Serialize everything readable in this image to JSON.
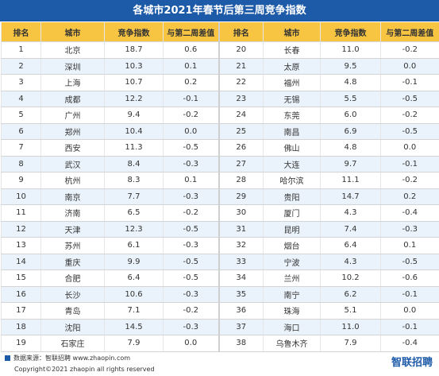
{
  "title": "各城市2021年春节后第三周竞争指数",
  "headers": [
    "排名",
    "城市",
    "竞争指数",
    "与第二周差值",
    "排名",
    "城市",
    "竞争指数",
    "与第二周差值"
  ],
  "rows": [
    {
      "l": [
        "1",
        "北京",
        "18.7",
        "0.6"
      ],
      "r": [
        "20",
        "长春",
        "11.0",
        "-0.2"
      ]
    },
    {
      "l": [
        "2",
        "深圳",
        "10.3",
        "0.1"
      ],
      "r": [
        "21",
        "太原",
        "9.5",
        "0.0"
      ]
    },
    {
      "l": [
        "3",
        "上海",
        "10.7",
        "0.2"
      ],
      "r": [
        "22",
        "福州",
        "4.8",
        "-0.1"
      ]
    },
    {
      "l": [
        "4",
        "成都",
        "12.2",
        "-0.1"
      ],
      "r": [
        "23",
        "无锡",
        "5.5",
        "-0.5"
      ]
    },
    {
      "l": [
        "5",
        "广州",
        "9.4",
        "-0.2"
      ],
      "r": [
        "24",
        "东莞",
        "6.0",
        "-0.2"
      ]
    },
    {
      "l": [
        "6",
        "郑州",
        "10.4",
        "0.0"
      ],
      "r": [
        "25",
        "南昌",
        "6.9",
        "-0.5"
      ]
    },
    {
      "l": [
        "7",
        "西安",
        "11.3",
        "-0.5"
      ],
      "r": [
        "26",
        "佛山",
        "4.8",
        "0.0"
      ]
    },
    {
      "l": [
        "8",
        "武汉",
        "8.4",
        "-0.3"
      ],
      "r": [
        "27",
        "大连",
        "9.7",
        "-0.1"
      ]
    },
    {
      "l": [
        "9",
        "杭州",
        "8.3",
        "0.1"
      ],
      "r": [
        "28",
        "哈尔滨",
        "11.1",
        "-0.2"
      ]
    },
    {
      "l": [
        "10",
        "南京",
        "7.7",
        "-0.3"
      ],
      "r": [
        "29",
        "贵阳",
        "14.7",
        "0.2"
      ]
    },
    {
      "l": [
        "11",
        "济南",
        "6.5",
        "-0.2"
      ],
      "r": [
        "30",
        "厦门",
        "4.3",
        "-0.4"
      ]
    },
    {
      "l": [
        "12",
        "天津",
        "12.3",
        "-0.5"
      ],
      "r": [
        "31",
        "昆明",
        "7.4",
        "-0.3"
      ]
    },
    {
      "l": [
        "13",
        "苏州",
        "6.1",
        "-0.3"
      ],
      "r": [
        "32",
        "烟台",
        "6.4",
        "0.1"
      ]
    },
    {
      "l": [
        "14",
        "重庆",
        "9.9",
        "-0.5"
      ],
      "r": [
        "33",
        "宁波",
        "4.3",
        "-0.5"
      ]
    },
    {
      "l": [
        "15",
        "合肥",
        "6.4",
        "-0.5"
      ],
      "r": [
        "34",
        "兰州",
        "10.2",
        "-0.6"
      ]
    },
    {
      "l": [
        "16",
        "长沙",
        "10.6",
        "-0.3"
      ],
      "r": [
        "35",
        "南宁",
        "6.2",
        "-0.1"
      ]
    },
    {
      "l": [
        "17",
        "青岛",
        "7.1",
        "-0.2"
      ],
      "r": [
        "36",
        "珠海",
        "5.1",
        "0.0"
      ]
    },
    {
      "l": [
        "18",
        "沈阳",
        "14.5",
        "-0.3"
      ],
      "r": [
        "37",
        "海口",
        "11.0",
        "-0.1"
      ]
    },
    {
      "l": [
        "19",
        "石家庄",
        "7.9",
        "0.0"
      ],
      "r": [
        "38",
        "乌鲁木齐",
        "7.9",
        "-0.4"
      ]
    }
  ],
  "footer": {
    "source": "数据来源：智联招聘   www.zhaopin.com",
    "copyright": "Copyright©2021 zhaopin all rights reserved",
    "brand": "智联招聘"
  },
  "colors": {
    "title_bg": "#1d5aa8",
    "header_bg": "#f7c542",
    "stripe": "#eaf3fb",
    "brand": "#1d5aa8"
  }
}
